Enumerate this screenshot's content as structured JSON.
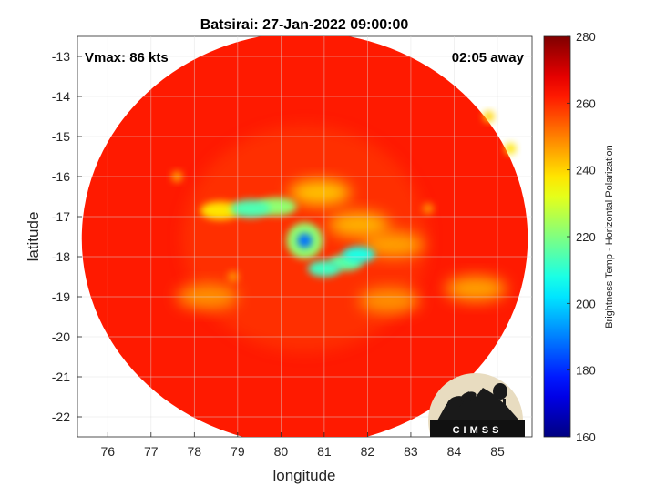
{
  "chart_data": {
    "type": "heatmap",
    "title": "Batsirai: 27-Jan-2022 09:00:00",
    "xlabel": "longitude",
    "ylabel": "latitude",
    "xlim": [
      75.3,
      85.8
    ],
    "ylim": [
      -22.5,
      -12.5
    ],
    "xticks": [
      76,
      77,
      78,
      79,
      80,
      81,
      82,
      83,
      84,
      85
    ],
    "yticks": [
      -13,
      -14,
      -15,
      -16,
      -17,
      -18,
      -19,
      -20,
      -21,
      -22
    ],
    "grid": true,
    "annotations": {
      "vmax": "Vmax: 86 kts",
      "time_offset": "02:05 away"
    },
    "colorbar": {
      "label": "Brightness Temp - Horizontal Polarization",
      "limits": [
        160,
        280
      ],
      "ticks": [
        160,
        180,
        200,
        220,
        240,
        260,
        280
      ],
      "colormap": "jet"
    },
    "swath": {
      "center_lon": 80.55,
      "center_lat": -17.55,
      "radius_deg": 5.15,
      "background_tb": 262
    },
    "features": [
      {
        "name": "eye",
        "lon": 80.55,
        "lat": -17.6,
        "tb": 188
      },
      {
        "name": "inner-eyewall",
        "lon": 80.55,
        "lat": -17.6,
        "tb": 222
      },
      {
        "name": "western-band-core",
        "lon": 79.3,
        "lat": -16.8,
        "tb": 214
      },
      {
        "name": "western-band-core",
        "lon": 79.9,
        "lat": -16.75,
        "tb": 222
      },
      {
        "name": "western-band-tail",
        "lon": 78.6,
        "lat": -16.85,
        "tb": 238
      },
      {
        "name": "southern-band",
        "lon": 81.0,
        "lat": -18.3,
        "tb": 212
      },
      {
        "name": "southern-band",
        "lon": 81.5,
        "lat": -18.15,
        "tb": 216
      },
      {
        "name": "southern-band",
        "lon": 81.8,
        "lat": -17.95,
        "tb": 208
      },
      {
        "name": "outer-arc",
        "lon": 80.9,
        "lat": -16.4,
        "tb": 242
      },
      {
        "name": "outer-arc",
        "lon": 81.8,
        "lat": -17.2,
        "tb": 244
      },
      {
        "name": "outer-arc",
        "lon": 82.6,
        "lat": -17.7,
        "tb": 246
      },
      {
        "name": "outer-band",
        "lon": 78.3,
        "lat": -19.0,
        "tb": 248
      },
      {
        "name": "outer-band",
        "lon": 82.5,
        "lat": -19.1,
        "tb": 248
      },
      {
        "name": "outer-band",
        "lon": 84.5,
        "lat": -18.8,
        "tb": 246
      },
      {
        "name": "scattered-cell",
        "lon": 84.8,
        "lat": -14.5,
        "tb": 240
      },
      {
        "name": "scattered-cell",
        "lon": 85.3,
        "lat": -15.3,
        "tb": 238
      },
      {
        "name": "scattered-cell",
        "lon": 77.6,
        "lat": -16.0,
        "tb": 246
      },
      {
        "name": "scattered-cell",
        "lon": 78.9,
        "lat": -18.5,
        "tb": 248
      },
      {
        "name": "scattered-cell",
        "lon": 83.4,
        "lat": -16.8,
        "tb": 248
      }
    ],
    "logo_text": "CIMSS"
  }
}
